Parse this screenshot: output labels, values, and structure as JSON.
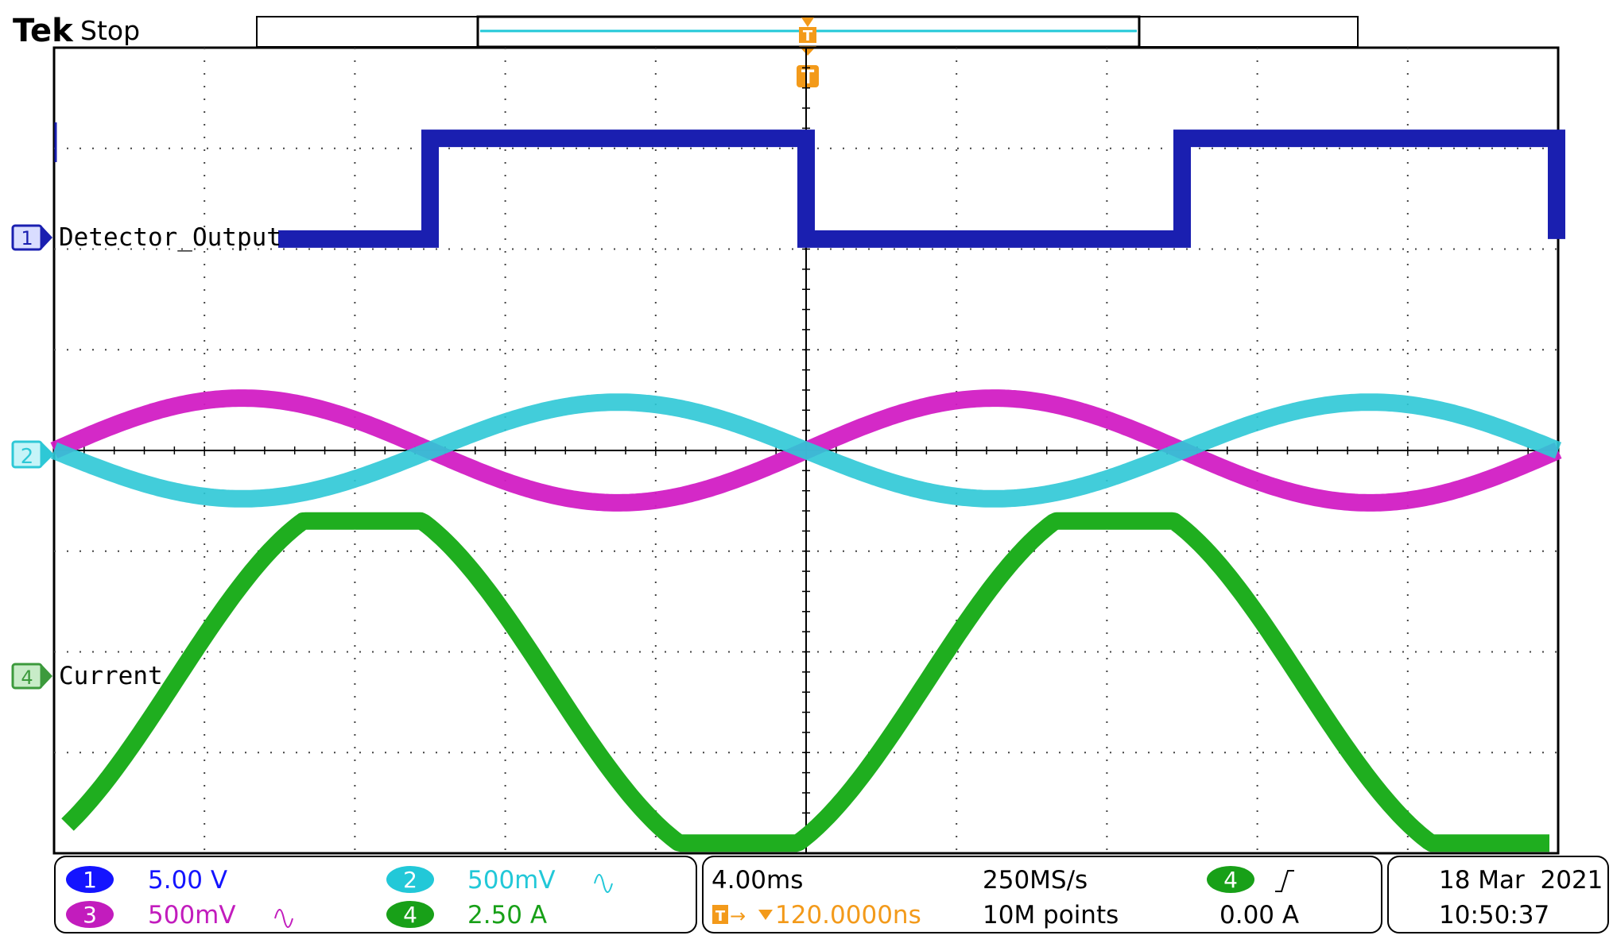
{
  "header": {
    "brand": "Tek",
    "run_state": "Stop",
    "trigger_marker": "T"
  },
  "channels": [
    {
      "id": "1",
      "label": "Detector_Output",
      "color": "#1a1fb0"
    },
    {
      "id": "2",
      "label": "",
      "color": "#2ec8d6"
    },
    {
      "id": "3",
      "label": "",
      "color": "#d21ec4"
    },
    {
      "id": "4",
      "label": "Current",
      "color": "#1fae1f"
    }
  ],
  "grid": {
    "hdiv": 10,
    "vdiv": 8
  },
  "bottom_panel": {
    "ch1": {
      "num": "1",
      "scale": "5.00 V",
      "color": "#1414ff"
    },
    "ch3": {
      "num": "3",
      "scale": "500mV",
      "color": "#c21cbd",
      "coupling_icon": "sine-icon"
    },
    "ch2": {
      "num": "2",
      "scale": "500mV",
      "color": "#22c8d8",
      "coupling_icon": "sine-icon"
    },
    "ch4": {
      "num": "4",
      "scale": "2.50 A",
      "color": "#18a018"
    },
    "timebase": "4.00ms",
    "trigger_offset": "120.0000ns",
    "sample_rate": "250MS/s",
    "record_length": "10M points",
    "trigger_source": "4",
    "trigger_slope_icon": "rising-edge-icon",
    "trigger_level": "0.00 A",
    "date": "18 Mar  2021",
    "time": "10:50:37"
  },
  "waveforms": {
    "ch1_unit": "div",
    "ch1_high": 3.1,
    "ch1_low": 2.1,
    "ch2_amplitude_div": 0.48,
    "ch3_amplitude_div": 0.52,
    "ch4_amplitude_div": 1.6,
    "period_div": 5,
    "ch4_offset_div": -2.3
  }
}
